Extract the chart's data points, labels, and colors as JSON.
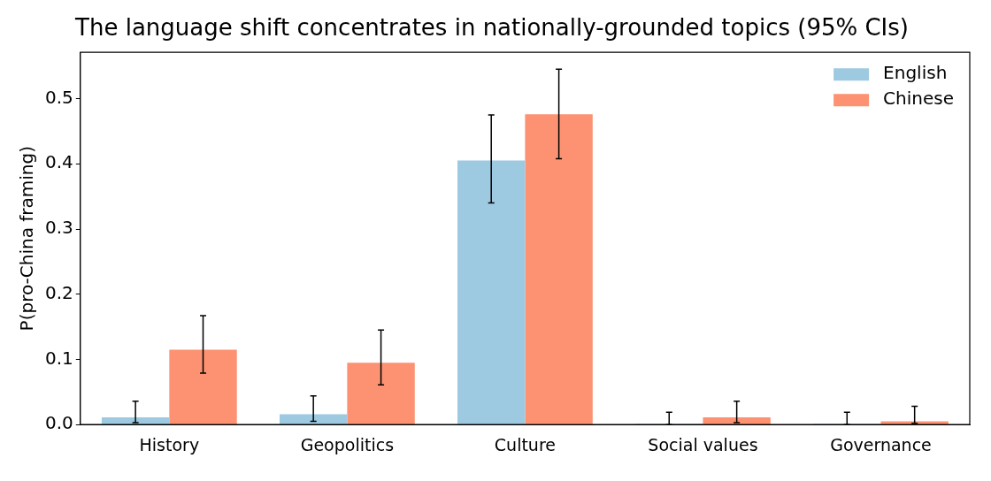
{
  "chart_data": {
    "type": "bar",
    "title": "The language shift concentrates in nationally-grounded topics (95% CIs)",
    "ylabel": "P(pro-China framing)",
    "categories": [
      "History",
      "Geopolitics",
      "Culture",
      "Social values",
      "Governance"
    ],
    "series": [
      {
        "name": "English",
        "color": "#9ecae1",
        "values": [
          0.011,
          0.016,
          0.405,
          0,
          0
        ],
        "errors": [
          [
            0.003,
            0.036
          ],
          [
            0.005,
            0.044
          ],
          [
            0.34,
            0.475
          ],
          [
            0,
            0.019
          ],
          [
            0,
            0.019
          ]
        ]
      },
      {
        "name": "Chinese",
        "color": "#fc9272",
        "values": [
          0.115,
          0.095,
          0.476,
          0.011,
          0.005
        ],
        "errors": [
          [
            0.079,
            0.167
          ],
          [
            0.061,
            0.145
          ],
          [
            0.408,
            0.545
          ],
          [
            0.003,
            0.036
          ],
          [
            0.002,
            0.028
          ]
        ]
      }
    ],
    "ylim": [
      0,
      0.571
    ],
    "yticks": [
      {
        "value": 0,
        "label": "0.0"
      },
      0.1,
      0.2,
      0.3,
      0.4,
      0.5
    ],
    "grid": false,
    "legend": "top right"
  }
}
